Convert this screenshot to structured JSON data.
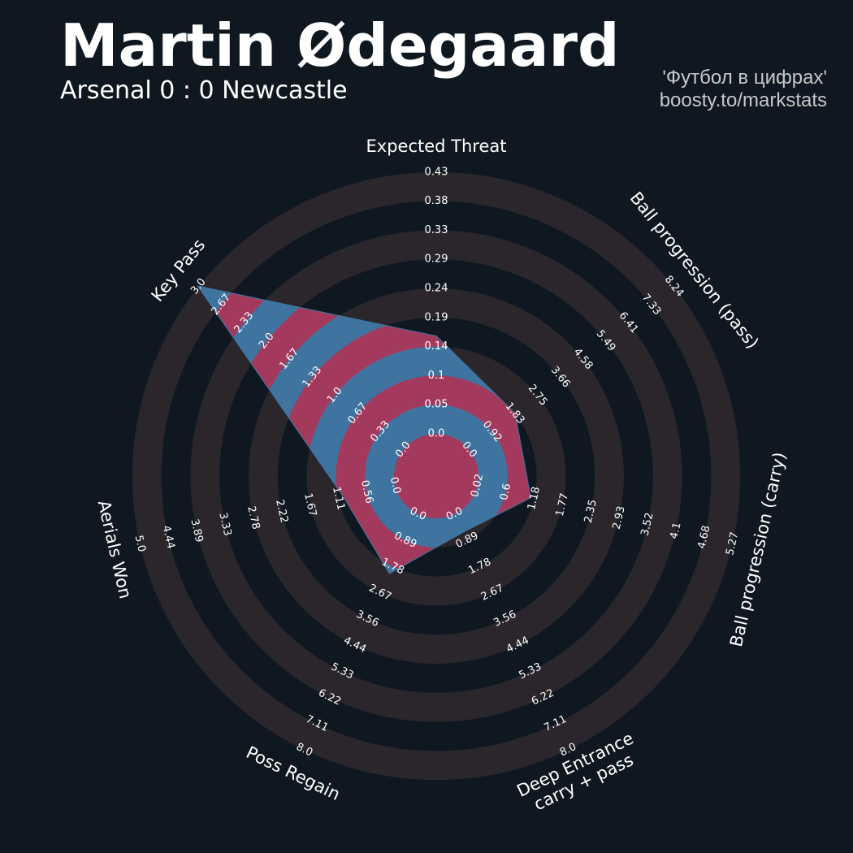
{
  "header": {
    "player_name": "Martin Ødegaard",
    "match": "Arsenal 0 : 0 Newcastle",
    "credit_line1": "'Футбол в цифрах'",
    "credit_line2": "boosty.to/markstats"
  },
  "chart_data": {
    "type": "radar",
    "title": "Martin Ødegaard",
    "subtitle": "Arsenal 0 : 0 Newcastle",
    "parameters": [
      {
        "label": "Expected Threat",
        "ticks": [
          "0.0",
          "0.05",
          "0.1",
          "0.14",
          "0.19",
          "0.24",
          "0.29",
          "0.33",
          "0.38",
          "0.43"
        ],
        "value": 0.16
      },
      {
        "label": "Ball progression (pass)",
        "ticks": [
          "0.0",
          "0.92",
          "1.83",
          "2.75",
          "3.66",
          "4.58",
          "5.49",
          "6.41",
          "7.33",
          "8.24"
        ],
        "value": 1.83
      },
      {
        "label": "Ball progression (carry)",
        "ticks": [
          "0.02",
          "0.6",
          "1.18",
          "1.77",
          "2.35",
          "2.93",
          "3.52",
          "4.1",
          "4.68",
          "5.27"
        ],
        "value": 1.11
      },
      {
        "label": "Deep Entrance\ncarry + pass",
        "ticks": [
          "0.0",
          "0.89",
          "1.78",
          "2.67",
          "3.56",
          "4.44",
          "5.33",
          "6.22",
          "7.11",
          "8.0"
        ],
        "value": 0.6
      },
      {
        "label": "Poss Regain",
        "ticks": [
          "0.0",
          "0.89",
          "1.78",
          "2.67",
          "3.56",
          "4.44",
          "5.33",
          "6.22",
          "7.11",
          "8.0"
        ],
        "value": 2.0
      },
      {
        "label": "Aerials Won",
        "ticks": [
          "0.0",
          "0.56",
          "1.11",
          "1.67",
          "2.22",
          "2.78",
          "3.33",
          "3.89",
          "4.44",
          "5.0"
        ],
        "value": 1.0
      },
      {
        "label": "Key Pass",
        "ticks": [
          "0.0",
          "0.33",
          "0.67",
          "1.0",
          "1.33",
          "1.67",
          "2.0",
          "2.33",
          "2.67",
          "3.0"
        ],
        "value": 3.0
      }
    ],
    "colors": {
      "background": "#0f1820",
      "ring": "#2a262c",
      "fill_a": "#3f74a0",
      "fill_b": "#a33a5e",
      "text": "#ffffff"
    }
  }
}
